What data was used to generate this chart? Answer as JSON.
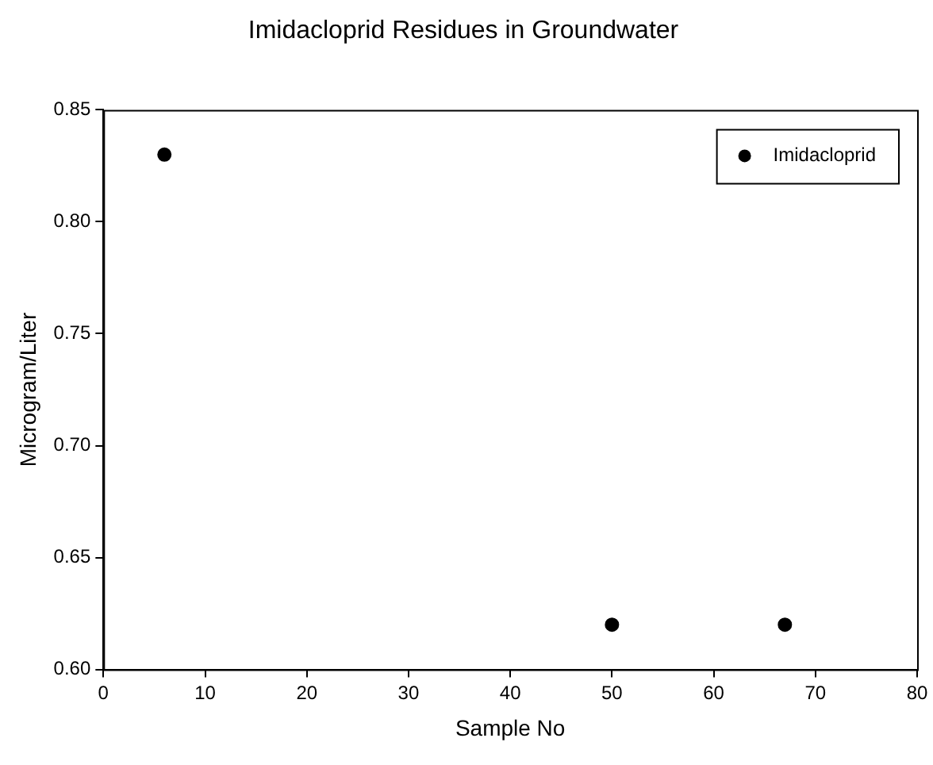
{
  "chart_data": {
    "type": "scatter",
    "title": "Imidacloprid Residues in Groundwater",
    "xlabel": "Sample No",
    "ylabel": "Microgram/Liter",
    "series": [
      {
        "name": "Imidacloprid",
        "color": "#000000",
        "x": [
          6,
          50,
          67
        ],
        "values": [
          0.83,
          0.62,
          0.62
        ]
      }
    ],
    "xlim": [
      0,
      80
    ],
    "xticks": [
      0,
      10,
      20,
      30,
      40,
      50,
      60,
      70,
      80
    ],
    "ylim": [
      0.6,
      0.85
    ],
    "yticks": [
      {
        "value": 0.6,
        "label": "0.60"
      },
      {
        "value": 0.65,
        "label": "0.65"
      },
      {
        "value": 0.7,
        "label": "0.70"
      },
      {
        "value": 0.75,
        "label": "0.75"
      },
      {
        "value": 0.8,
        "label": "0.80"
      },
      {
        "value": 0.85,
        "label": "0.85"
      }
    ],
    "grid": false,
    "legend": "top right",
    "marker": "circle"
  }
}
